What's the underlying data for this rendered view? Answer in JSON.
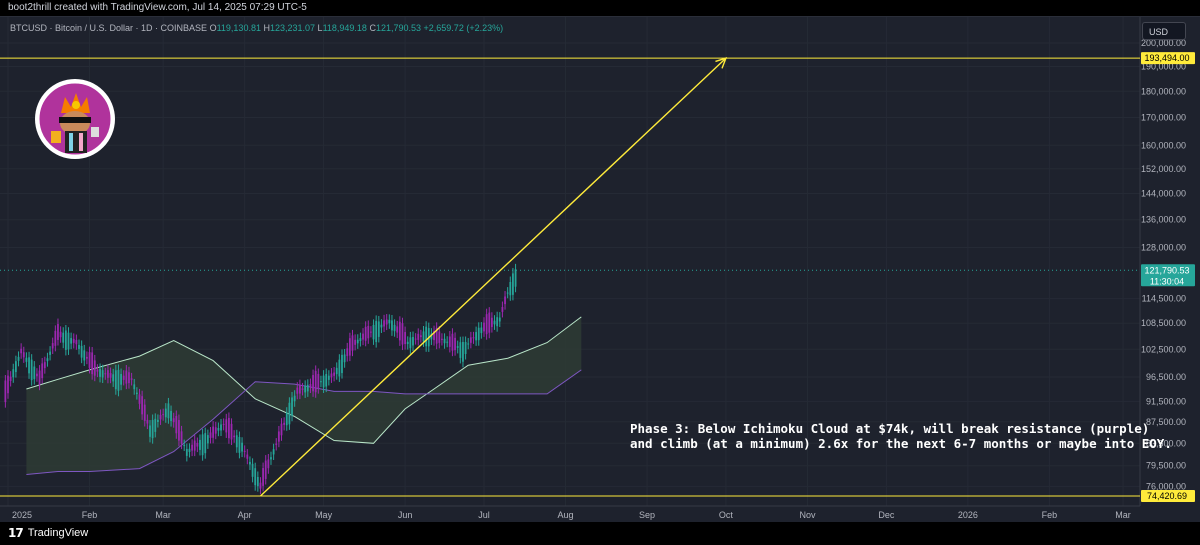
{
  "header": {
    "attribution": "boot2thrill created with TradingView.com, Jul 14, 2025 07:29 UTC-5"
  },
  "symbol": {
    "name": "BTCUSD · Bitcoin / U.S. Dollar · 1D · COINBASE",
    "open_label": "O",
    "open": "119,130.81",
    "high_label": "H",
    "high": "123,231.07",
    "low_label": "L",
    "low": "118,949.18",
    "close_label": "C",
    "close": "121,790.53",
    "change": "+2,659.72 (+2.23%)"
  },
  "currency_button": "USD",
  "footer": {
    "logo_mark": "17",
    "brand": "TradingView"
  },
  "colors": {
    "bg": "#1e222d",
    "up": "#26a69a",
    "down": "#9c27b0",
    "trend": "#ffeb3b",
    "cloud_bull": "#2e3b35",
    "cloud_bear": "#2b2540"
  },
  "chart_data": {
    "type": "candlestick",
    "y_scale": "log",
    "ylim": [
      73000,
      210000
    ],
    "y_ticks": [
      "200,000.00",
      "190,000.00",
      "180,000.00",
      "170,000.00",
      "160,000.00",
      "152,000.00",
      "144,000.00",
      "136,000.00",
      "128,000.00",
      "114,500.00",
      "108,500.00",
      "102,500.00",
      "96,500.00",
      "91,500.00",
      "87,500.00",
      "83,500.00",
      "79,500.00",
      "76,000.00"
    ],
    "x_ticks": [
      "2025",
      "Feb",
      "Mar",
      "Apr",
      "May",
      "Jun",
      "Jul",
      "Aug",
      "Sep",
      "Oct",
      "Nov",
      "Dec",
      "2026",
      "Feb",
      "Mar"
    ],
    "price_labels": {
      "resistance": "193,494.00",
      "support": "74,420.69",
      "last_price": "121,790.53",
      "countdown": "11:30:04"
    },
    "trend_line": {
      "from": {
        "date": "2025-04-07",
        "price": 74420.69
      },
      "to": {
        "date": "2025-10-01",
        "price": 193494.0
      }
    },
    "horizontal_lines": [
      193494.0,
      74420.69
    ],
    "price_series": [
      {
        "d": "2024-12-31",
        "c": 93000
      },
      {
        "d": "2025-01-06",
        "c": 102000
      },
      {
        "d": "2025-01-13",
        "c": 96000
      },
      {
        "d": "2025-01-20",
        "c": 106000
      },
      {
        "d": "2025-01-27",
        "c": 104000
      },
      {
        "d": "2025-02-03",
        "c": 98000
      },
      {
        "d": "2025-02-10",
        "c": 96500
      },
      {
        "d": "2025-02-17",
        "c": 96000
      },
      {
        "d": "2025-02-24",
        "c": 86000
      },
      {
        "d": "2025-03-03",
        "c": 90000
      },
      {
        "d": "2025-03-10",
        "c": 82000
      },
      {
        "d": "2025-03-17",
        "c": 84000
      },
      {
        "d": "2025-03-24",
        "c": 87000
      },
      {
        "d": "2025-03-31",
        "c": 83000
      },
      {
        "d": "2025-04-07",
        "c": 76000
      },
      {
        "d": "2025-04-14",
        "c": 84500
      },
      {
        "d": "2025-04-21",
        "c": 93500
      },
      {
        "d": "2025-04-28",
        "c": 95000
      },
      {
        "d": "2025-05-05",
        "c": 97000
      },
      {
        "d": "2025-05-12",
        "c": 103500
      },
      {
        "d": "2025-05-19",
        "c": 106500
      },
      {
        "d": "2025-05-26",
        "c": 109000
      },
      {
        "d": "2025-06-02",
        "c": 104000
      },
      {
        "d": "2025-06-09",
        "c": 106000
      },
      {
        "d": "2025-06-16",
        "c": 104500
      },
      {
        "d": "2025-06-23",
        "c": 102500
      },
      {
        "d": "2025-06-30",
        "c": 107000
      },
      {
        "d": "2025-07-07",
        "c": 109500
      },
      {
        "d": "2025-07-10",
        "c": 116000
      },
      {
        "d": "2025-07-14",
        "c": 121790.53
      }
    ],
    "annotation": [
      "Phase 3: Below Ichimoku Cloud at $74k, will break resistance (purple)",
      "and climb (at a minimum) 2.6x for the next 6-7 months or maybe into EOY."
    ]
  }
}
